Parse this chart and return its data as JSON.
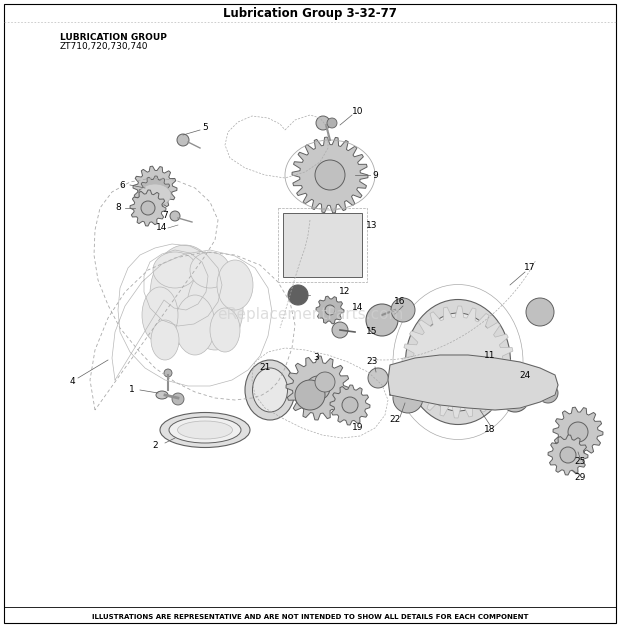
{
  "title": "Lubrication Group 3-32-77",
  "title_fontsize": 8.5,
  "subtitle_line1": "LUBRICATION GROUP",
  "subtitle_line2": "ZT710,720,730,740",
  "subtitle_fontsize": 6.5,
  "footer_text": "ILLUSTRATIONS ARE REPRESENTATIVE AND ARE NOT INTENDED TO SHOW ALL DETAILS FOR EACH COMPONENT",
  "footer_fontsize": 5.0,
  "bg_color": "#ffffff",
  "watermark_text": "eReplacementParts.com",
  "watermark_color": "#d0d0d0",
  "watermark_fontsize": 11,
  "figwidth": 6.2,
  "figheight": 6.27,
  "dpi": 100
}
